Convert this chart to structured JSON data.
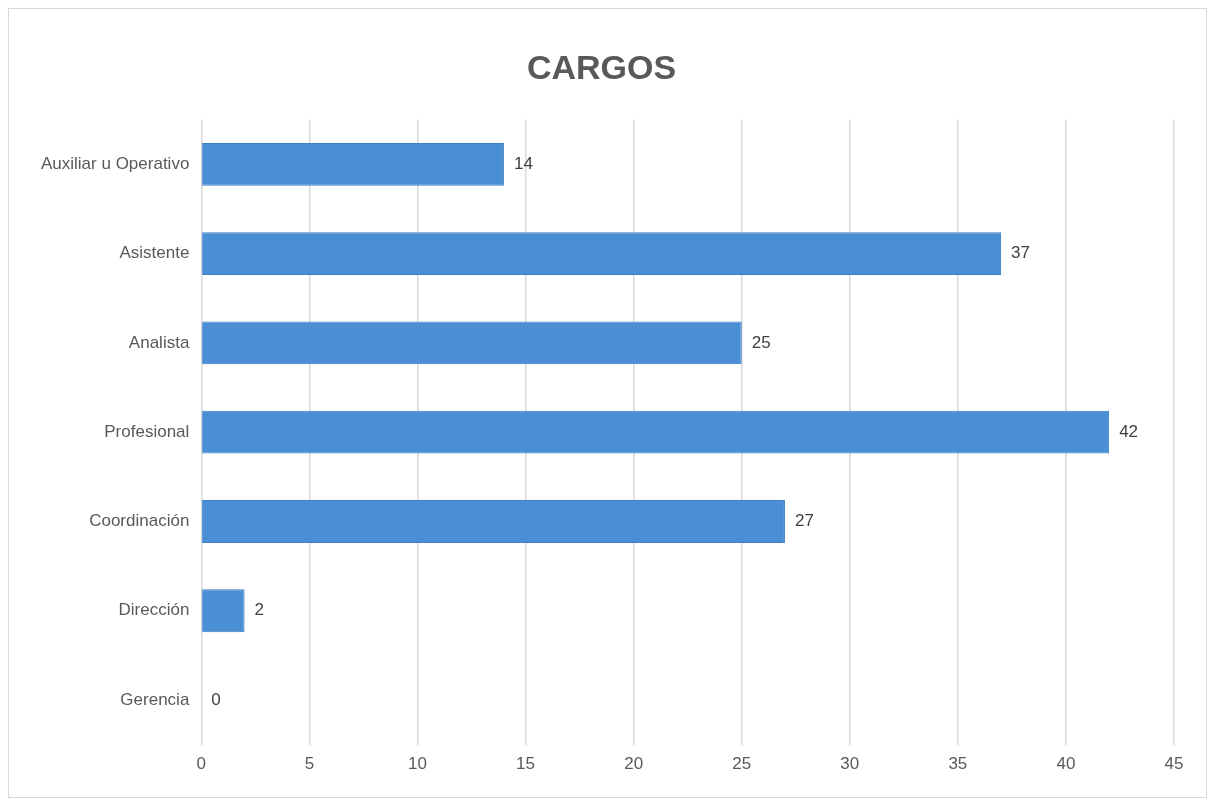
{
  "chart_data": {
    "type": "bar",
    "title": "CARGOS",
    "orientation": "horizontal",
    "categories": [
      "Auxiliar u Operativo",
      "Asistente",
      "Analista",
      "Profesional",
      "Coordinación",
      "Dirección",
      "Gerencia"
    ],
    "values": [
      14,
      37,
      25,
      42,
      27,
      2,
      0
    ],
    "color": "#4a8fd6",
    "xlim": [
      0,
      45
    ],
    "xticks": [
      0,
      5,
      10,
      15,
      20,
      25,
      30,
      35,
      40,
      45
    ],
    "grid": "x",
    "data_labels": true,
    "legend": false
  }
}
